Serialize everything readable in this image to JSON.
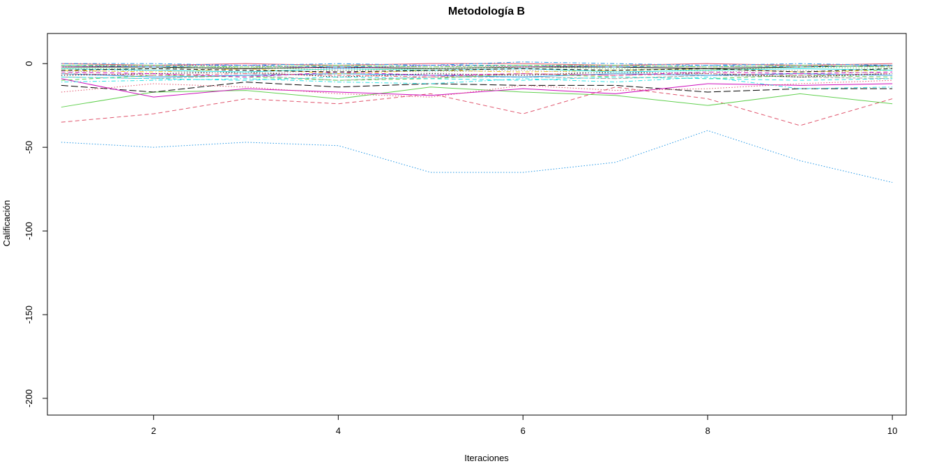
{
  "chart_data": {
    "type": "line",
    "title": "Metodología B",
    "xlabel": "Iteraciones",
    "ylabel": "Calificación",
    "xlim": [
      0.85,
      10.15
    ],
    "ylim": [
      -210,
      18
    ],
    "x_ticks": [
      2,
      4,
      6,
      8,
      10
    ],
    "y_ticks": [
      0,
      -50,
      -100,
      -150,
      -200
    ],
    "grid": false,
    "legend": "none",
    "x": [
      1,
      2,
      3,
      4,
      5,
      6,
      7,
      8,
      9,
      10
    ],
    "series": [
      {
        "color": "#2297E6",
        "dash": "dotted",
        "values": [
          -47,
          -50,
          -47,
          -49,
          -65,
          -65,
          -59,
          -40,
          -58,
          -71
        ]
      },
      {
        "color": "#DF536B",
        "dash": "dashed",
        "values": [
          -35,
          -30,
          -21,
          -24,
          -18,
          -30,
          -14,
          -21,
          -37,
          -21
        ]
      },
      {
        "color": "#61D04F",
        "dash": "solid",
        "values": [
          -26,
          -17,
          -16,
          -21,
          -14,
          -17,
          -19,
          -25,
          -18,
          -24
        ]
      },
      {
        "color": "#000000",
        "dash": "longdash",
        "values": [
          -13,
          -17,
          -11,
          -14,
          -12,
          -13,
          -13,
          -17,
          -15,
          -15
        ]
      },
      {
        "color": "#CD0BBC",
        "dash": "solid",
        "values": [
          -9,
          -20,
          -15,
          -17,
          -19,
          -15,
          -18,
          -12,
          -13,
          -12
        ]
      },
      {
        "color": "#28E2E5",
        "dash": "dotdash",
        "values": [
          -11,
          -10,
          -9,
          -11,
          -12,
          -9,
          -11,
          -8,
          -15,
          -14
        ]
      },
      {
        "color": "#DF536B",
        "dash": "dotted",
        "values": [
          -17,
          -12,
          -14,
          -18,
          -20,
          -13,
          -16,
          -15,
          -12,
          -10
        ]
      },
      {
        "color": "#9E9E9E",
        "dash": "twodash",
        "values": [
          -8,
          -9,
          -7,
          -10,
          -8,
          -8,
          -9,
          -7,
          -8,
          -9
        ]
      },
      {
        "color": "#2297E6",
        "dash": "solid",
        "values": [
          -6,
          -8,
          -7,
          -6,
          -7,
          -8,
          -6,
          -7,
          -6,
          -7
        ]
      },
      {
        "color": "#61D04F",
        "dash": "dashed",
        "values": [
          -10,
          -7,
          -8,
          -10,
          -9,
          -6,
          -8,
          -9,
          -7,
          -8
        ]
      },
      {
        "color": "#000000",
        "dash": "dotted",
        "values": [
          -7,
          -6,
          -5,
          -8,
          -6,
          -7,
          -5,
          -6,
          -8,
          -6
        ]
      },
      {
        "color": "#CD0BBC",
        "dash": "dashed",
        "values": [
          -5,
          -6,
          -8,
          -5,
          -7,
          -6,
          -7,
          -5,
          -6,
          -5
        ]
      },
      {
        "color": "#F5C710",
        "dash": "dotdash",
        "values": [
          -4,
          -5,
          -3,
          -6,
          -4,
          -5,
          -4,
          -3,
          -5,
          -4
        ]
      },
      {
        "color": "#28E2E5",
        "dash": "solid",
        "values": [
          -3,
          -4,
          -5,
          -3,
          -4,
          -3,
          -5,
          -4,
          -3,
          -4
        ]
      },
      {
        "color": "#000000",
        "dash": "solid",
        "values": [
          -2,
          -2,
          -3,
          -2,
          -3,
          -2,
          -2,
          -3,
          -2,
          -1
        ]
      },
      {
        "color": "#2297E6",
        "dash": "dashed",
        "values": [
          -1,
          -2,
          -1,
          -2,
          -1,
          -1,
          -2,
          -1,
          -2,
          -1
        ]
      },
      {
        "color": "#DF536B",
        "dash": "solid",
        "values": [
          0,
          -1,
          0,
          -1,
          0,
          0,
          -1,
          0,
          -1,
          0
        ]
      },
      {
        "color": "#61D04F",
        "dash": "dotted",
        "values": [
          -3,
          -3,
          -2,
          -4,
          -3,
          -2,
          -3,
          -4,
          -2,
          -3
        ]
      },
      {
        "color": "#9E9E9E",
        "dash": "dotted",
        "values": [
          -5,
          -4,
          -6,
          -4,
          -5,
          -4,
          -6,
          -5,
          -4,
          -6
        ]
      },
      {
        "color": "#CD0BBC",
        "dash": "dotted",
        "values": [
          -2,
          -1,
          -1,
          -3,
          -1,
          -2,
          -1,
          -2,
          -1,
          -2
        ]
      },
      {
        "color": "#2297E6",
        "dash": "dotdash",
        "values": [
          0,
          0,
          -1,
          0,
          -1,
          1,
          0,
          -1,
          0,
          -1
        ]
      },
      {
        "color": "#000000",
        "dash": "dashed",
        "values": [
          -4,
          -3,
          -4,
          -5,
          -4,
          -3,
          -4,
          -3,
          -5,
          -3
        ]
      },
      {
        "color": "#28E2E5",
        "dash": "dashed",
        "values": [
          -8,
          -9,
          -10,
          -8,
          -9,
          -10,
          -8,
          -9,
          -10,
          -9
        ]
      },
      {
        "color": "#61D04F",
        "dash": "twodash",
        "values": [
          -1,
          -1,
          -2,
          -1,
          -2,
          -1,
          -1,
          -2,
          -1,
          -2
        ]
      },
      {
        "color": "#DF536B",
        "dash": "dotdash",
        "values": [
          -6,
          -7,
          -6,
          -7,
          -8,
          -6,
          -7,
          -6,
          -7,
          -6
        ]
      }
    ]
  }
}
